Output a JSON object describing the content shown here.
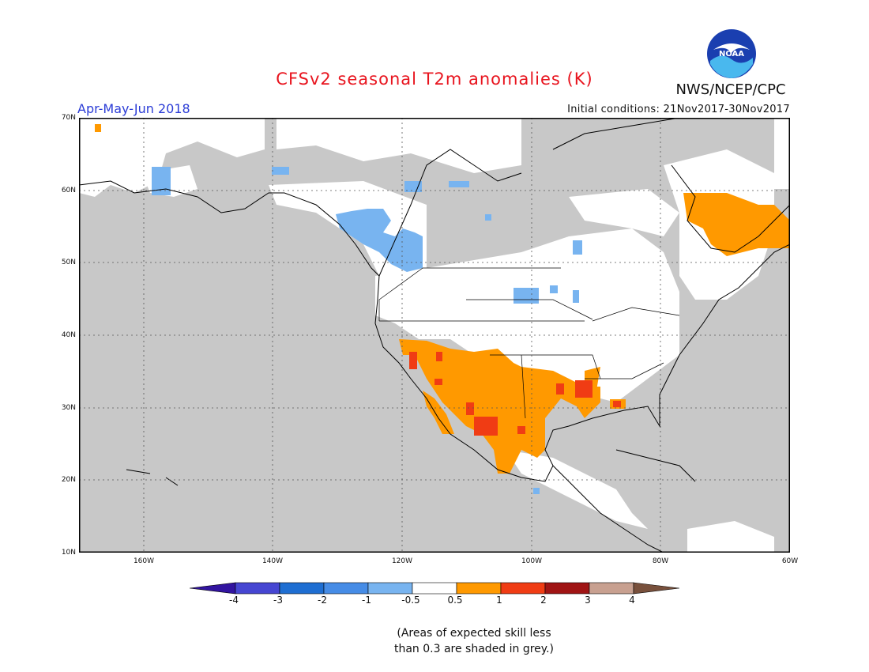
{
  "header": {
    "title": "CFSv2 seasonal T2m anomalies (K)",
    "agency": "NWS/NCEP/CPC",
    "logo_text": "NOAA",
    "period": "Apr-May-Jun 2018",
    "initial_conditions": "Initial conditions: 21Nov2017-30Nov2017"
  },
  "map": {
    "lat_labels": [
      "70N",
      "60N",
      "50N",
      "40N",
      "30N",
      "20N",
      "10N"
    ],
    "lon_labels": [
      "160W",
      "140W",
      "120W",
      "100W",
      "80W",
      "60W"
    ],
    "colors": {
      "grey_mask": "#c8c8c8",
      "land_white": "#ffffff",
      "neg_light_blue": "#78b4f0",
      "orange": "#ff9900",
      "red": "#f03c14"
    }
  },
  "colorbar": {
    "labels": [
      "-4",
      "-3",
      "-2",
      "-1",
      "-0.5",
      "0.5",
      "1",
      "2",
      "3",
      "4"
    ],
    "colors": [
      "#3214a0",
      "#4646d2",
      "#1e6ed2",
      "#468ce6",
      "#78b4f0",
      "#ffffff",
      "#ff9900",
      "#f03c14",
      "#a01414",
      "#c8a090",
      "#78503c"
    ]
  },
  "footnote": {
    "line1": "(Areas of expected skill less",
    "line2": "than 0.3 are shaded in grey.)"
  }
}
